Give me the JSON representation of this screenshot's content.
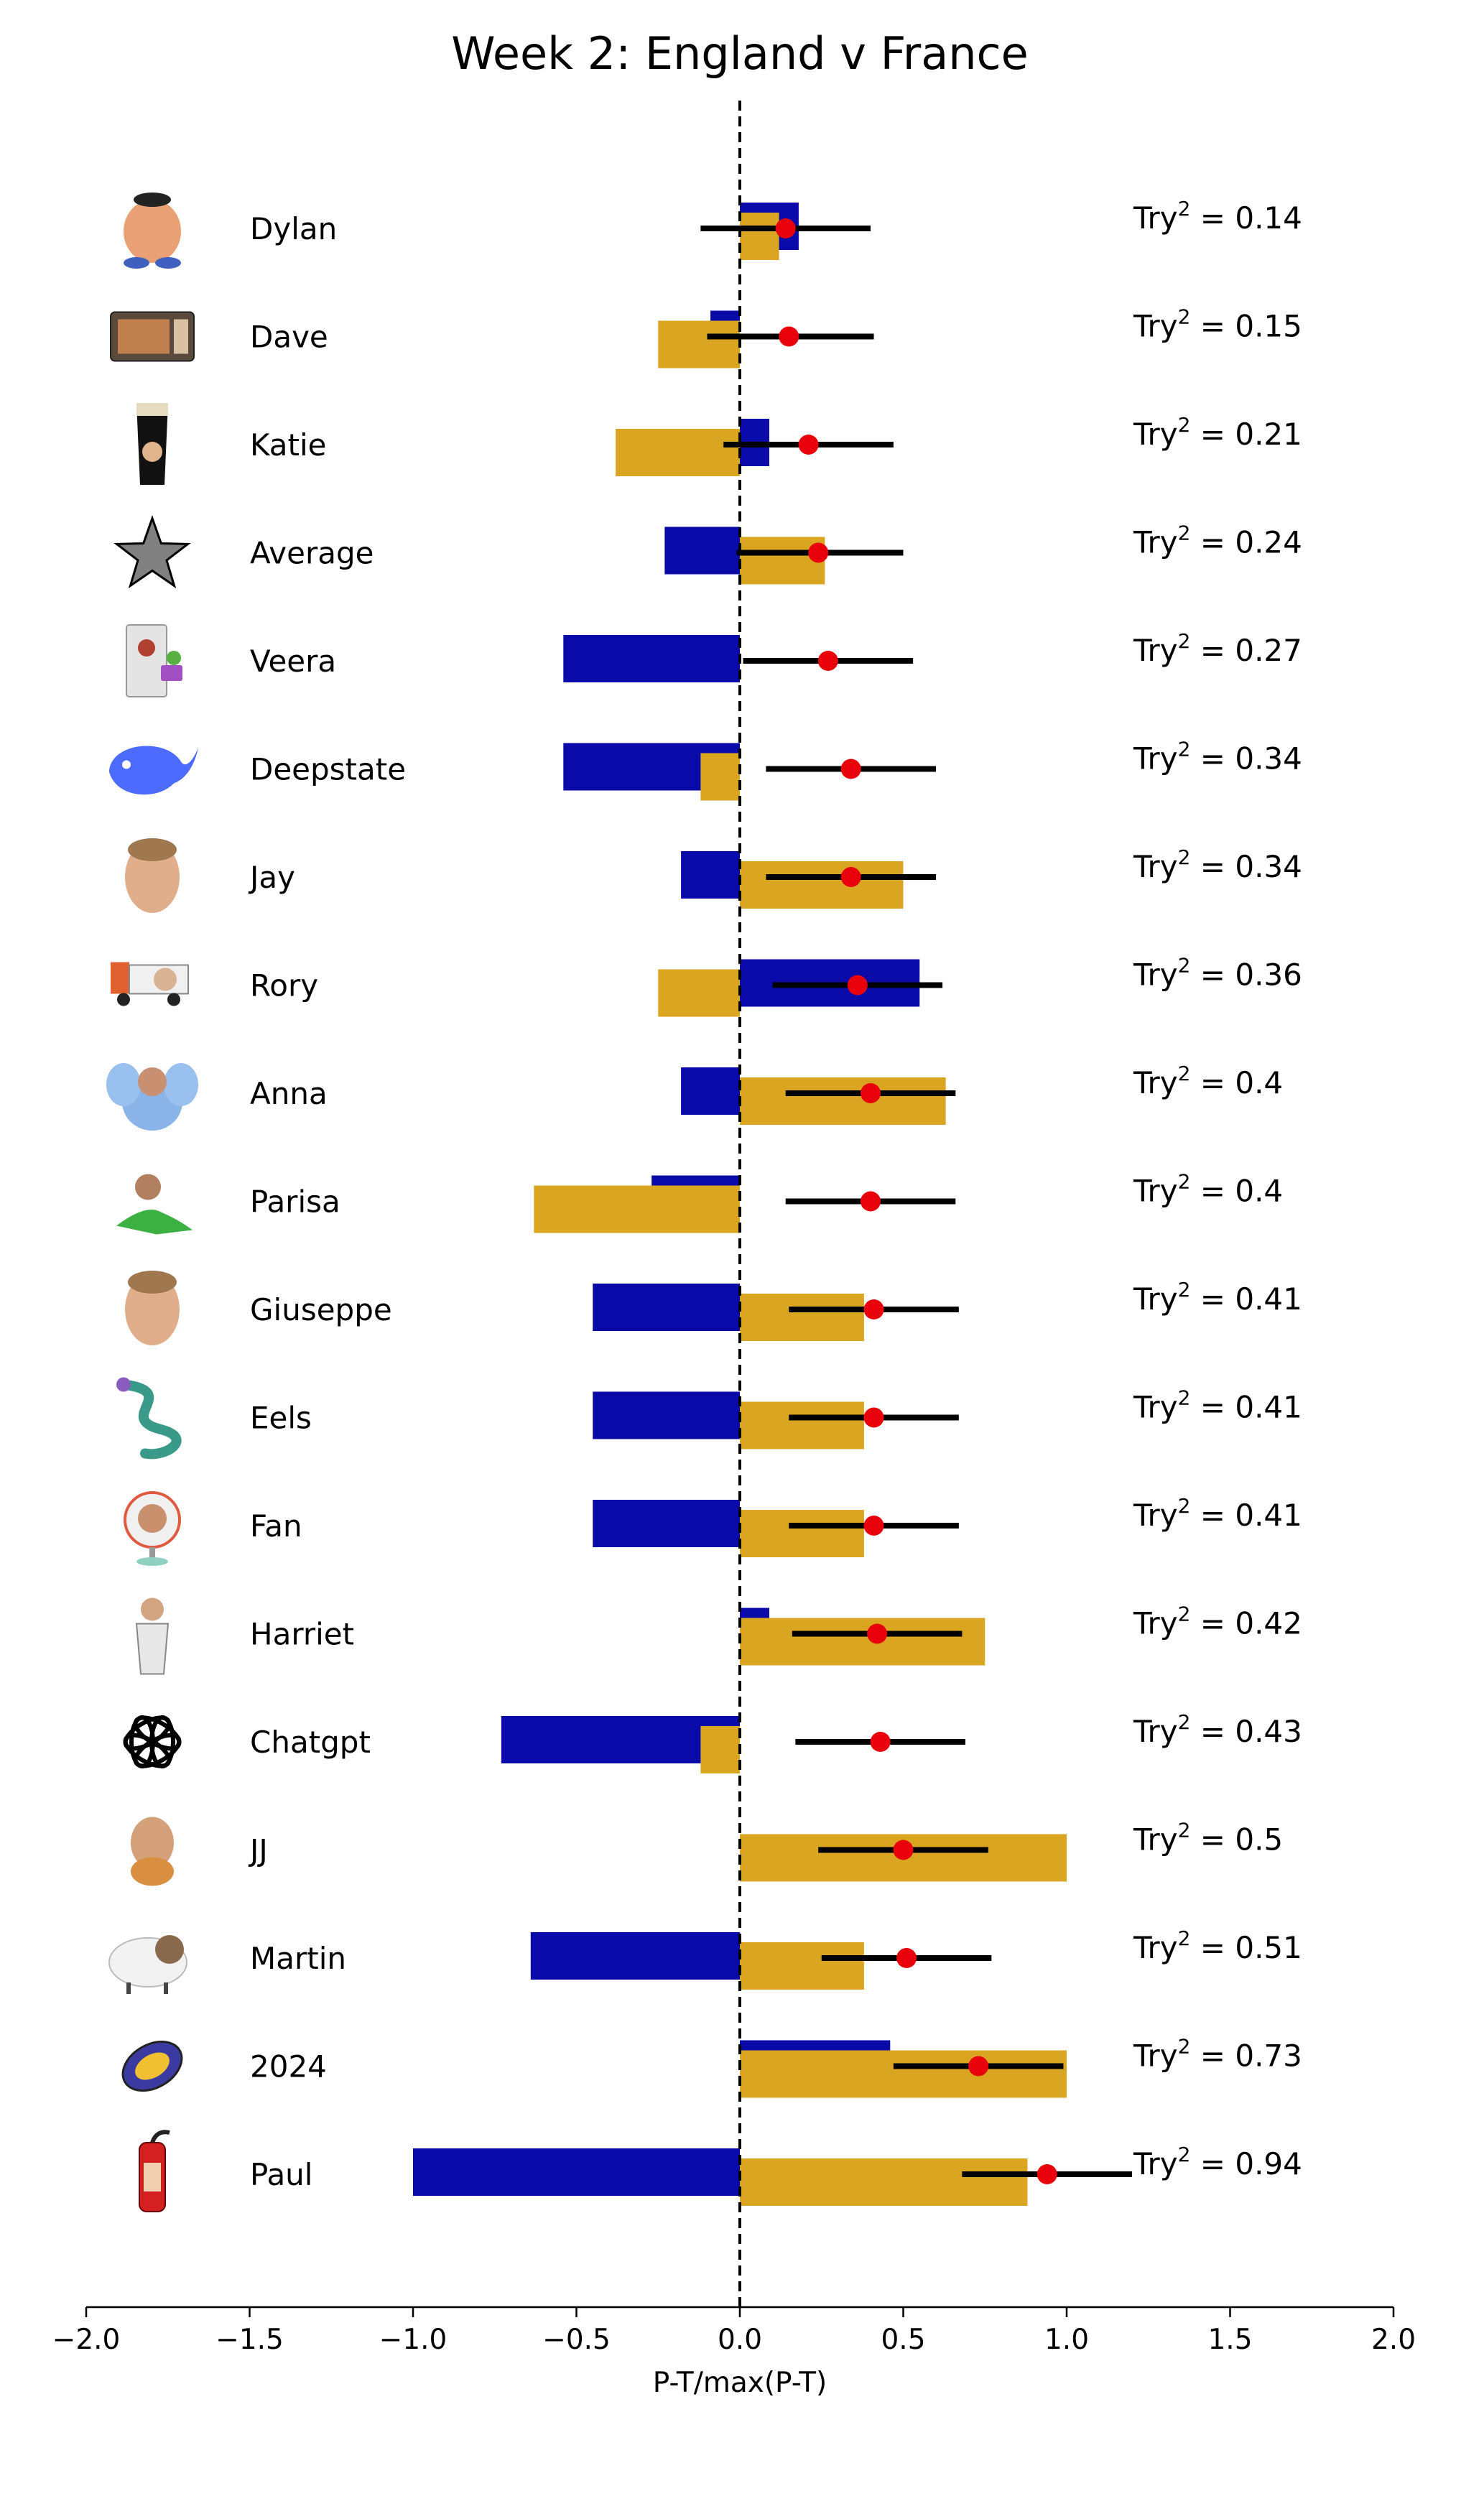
{
  "chart_data": {
    "type": "bar",
    "title": "Week 2: England v France",
    "xlabel": "P-T/max(P-T)",
    "xlim": [
      -2.0,
      2.0
    ],
    "xticks": [
      -2.0,
      -1.5,
      -1.0,
      -0.5,
      0.0,
      0.5,
      1.0,
      1.5,
      2.0
    ],
    "xtick_labels": [
      "−2.0",
      "−1.5",
      "−1.0",
      "−0.5",
      "0.0",
      "0.5",
      "1.0",
      "1.5",
      "2.0"
    ],
    "reference_line": 0.0,
    "score_prefix": "Try",
    "score_exponent": "2",
    "score_infix": " = ",
    "colors": {
      "blue": "#0a0aa8",
      "gold": "#daa520",
      "point": "#e8000b",
      "errorbar": "#000000"
    },
    "rows": [
      {
        "name": "Dylan",
        "icon": "mr-potato-head-icon",
        "blue": 0.18,
        "gold": 0.12,
        "point": 0.14,
        "err_lo": -0.12,
        "err_hi": 0.4,
        "score": "0.14"
      },
      {
        "name": "Dave",
        "icon": "microwave-icon",
        "blue": -0.09,
        "gold": -0.25,
        "point": 0.15,
        "err_lo": -0.1,
        "err_hi": 0.41,
        "score": "0.15"
      },
      {
        "name": "Katie",
        "icon": "pint-glass-icon",
        "blue": 0.09,
        "gold": -0.38,
        "point": 0.21,
        "err_lo": -0.05,
        "err_hi": 0.47,
        "score": "0.21"
      },
      {
        "name": "Average",
        "icon": "star-icon",
        "blue": -0.23,
        "gold": 0.26,
        "point": 0.24,
        "err_lo": -0.01,
        "err_hi": 0.5,
        "score": "0.24"
      },
      {
        "name": "Veera",
        "icon": "computer-tower-icon",
        "blue": -0.54,
        "gold": 0.0,
        "point": 0.27,
        "err_lo": 0.01,
        "err_hi": 0.53,
        "score": "0.27"
      },
      {
        "name": "Deepstate",
        "icon": "whale-icon",
        "blue": -0.54,
        "gold": -0.12,
        "point": 0.34,
        "err_lo": 0.08,
        "err_hi": 0.6,
        "score": "0.34"
      },
      {
        "name": "Jay",
        "icon": "baby-face-icon",
        "blue": -0.18,
        "gold": 0.5,
        "point": 0.34,
        "err_lo": 0.08,
        "err_hi": 0.6,
        "score": "0.34"
      },
      {
        "name": "Rory",
        "icon": "truck-icon",
        "blue": 0.55,
        "gold": -0.25,
        "point": 0.36,
        "err_lo": 0.1,
        "err_hi": 0.62,
        "score": "0.36"
      },
      {
        "name": "Anna",
        "icon": "elephant-icon",
        "blue": -0.18,
        "gold": 0.63,
        "point": 0.4,
        "err_lo": 0.14,
        "err_hi": 0.66,
        "score": "0.4"
      },
      {
        "name": "Parisa",
        "icon": "dinosaur-icon",
        "blue": -0.27,
        "gold": -0.63,
        "point": 0.4,
        "err_lo": 0.14,
        "err_hi": 0.66,
        "score": "0.4"
      },
      {
        "name": "Giuseppe",
        "icon": "person-portrait-icon",
        "blue": -0.45,
        "gold": 0.38,
        "point": 0.41,
        "err_lo": 0.15,
        "err_hi": 0.67,
        "score": "0.41"
      },
      {
        "name": "Eels",
        "icon": "eel-icon",
        "blue": -0.45,
        "gold": 0.38,
        "point": 0.41,
        "err_lo": 0.15,
        "err_hi": 0.67,
        "score": "0.41"
      },
      {
        "name": "Fan",
        "icon": "fan-icon",
        "blue": -0.45,
        "gold": 0.38,
        "point": 0.41,
        "err_lo": 0.15,
        "err_hi": 0.67,
        "score": "0.41"
      },
      {
        "name": "Harriet",
        "icon": "person-standing-icon",
        "blue": 0.09,
        "gold": 0.75,
        "point": 0.42,
        "err_lo": 0.16,
        "err_hi": 0.68,
        "score": "0.42"
      },
      {
        "name": "Chatgpt",
        "icon": "openai-logo-icon",
        "blue": -0.73,
        "gold": -0.12,
        "point": 0.43,
        "err_lo": 0.17,
        "err_hi": 0.69,
        "score": "0.43"
      },
      {
        "name": "JJ",
        "icon": "person-with-dog-icon",
        "blue": 0.0,
        "gold": 1.0,
        "point": 0.5,
        "err_lo": 0.24,
        "err_hi": 0.76,
        "score": "0.5"
      },
      {
        "name": "Martin",
        "icon": "sheep-icon",
        "blue": -0.64,
        "gold": 0.38,
        "point": 0.51,
        "err_lo": 0.25,
        "err_hi": 0.77,
        "score": "0.51"
      },
      {
        "name": "2024",
        "icon": "rugby-ball-2024-icon",
        "blue": 0.46,
        "gold": 1.0,
        "point": 0.73,
        "err_lo": 0.47,
        "err_hi": 0.99,
        "score": "0.73"
      },
      {
        "name": "Paul",
        "icon": "fire-extinguisher-icon",
        "blue": -1.0,
        "gold": 0.88,
        "point": 0.94,
        "err_lo": 0.68,
        "err_hi": 1.2,
        "score": "0.94"
      }
    ]
  }
}
